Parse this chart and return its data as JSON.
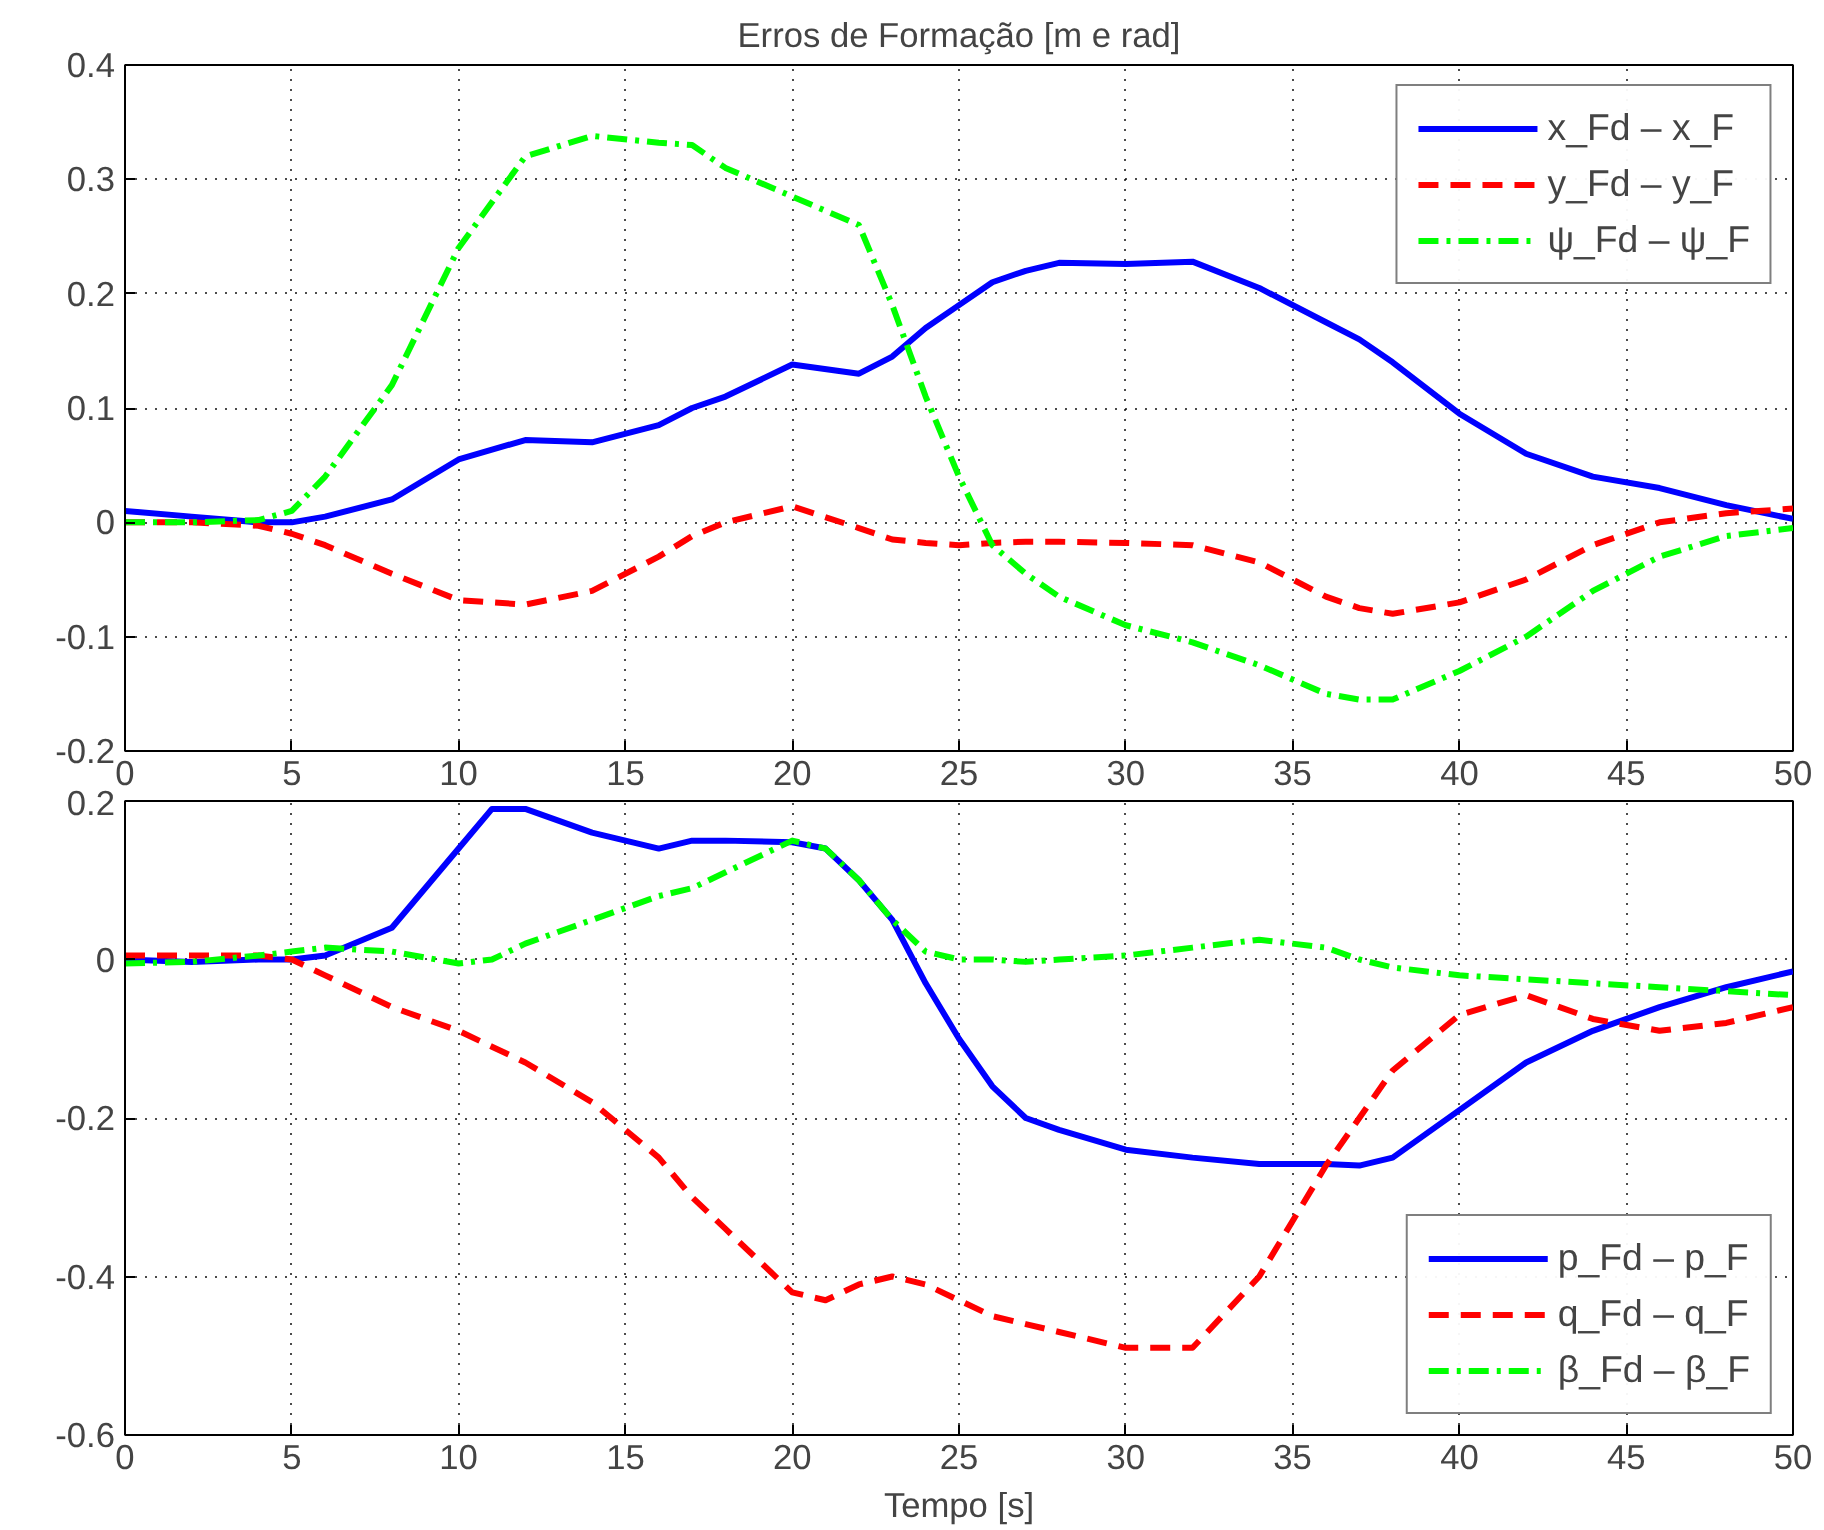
{
  "chart_data": [
    {
      "type": "line",
      "title": "Erros de Formação [m e rad]",
      "xlim": [
        0,
        50
      ],
      "ylim": [
        -0.2,
        0.4
      ],
      "xticks": [
        0,
        5,
        10,
        15,
        20,
        25,
        30,
        35,
        40,
        45,
        50
      ],
      "yticks": [
        -0.2,
        -0.1,
        0,
        0.1,
        0.2,
        0.3,
        0.4
      ],
      "grid": true,
      "legend": "top right",
      "x": [
        0,
        2,
        4,
        5,
        6,
        8,
        10,
        12,
        14,
        16,
        17,
        18,
        20,
        22,
        23,
        24,
        25,
        26,
        27,
        28,
        30,
        32,
        34,
        36,
        37,
        38,
        40,
        42,
        44,
        46,
        48,
        50
      ],
      "series": [
        {
          "name": "x_Fd – x_F",
          "color": "#0000ff",
          "line_style": "solid",
          "values": [
            0.01,
            0.005,
            0.0,
            0.0,
            0.005,
            0.02,
            0.055,
            0.072,
            0.07,
            0.085,
            0.1,
            0.11,
            0.138,
            0.13,
            0.145,
            0.17,
            0.19,
            0.21,
            0.22,
            0.227,
            0.226,
            0.228,
            0.205,
            0.175,
            0.16,
            0.14,
            0.095,
            0.06,
            0.04,
            0.03,
            0.015,
            0.003
          ]
        },
        {
          "name": "y_Fd – y_F",
          "color": "#ff0000",
          "line_style": "dashed",
          "values": [
            0,
            0,
            -0.003,
            -0.01,
            -0.02,
            -0.045,
            -0.068,
            -0.072,
            -0.06,
            -0.03,
            -0.012,
            0.0,
            0.014,
            -0.005,
            -0.015,
            -0.018,
            -0.02,
            -0.018,
            -0.017,
            -0.017,
            -0.018,
            -0.02,
            -0.035,
            -0.065,
            -0.075,
            -0.08,
            -0.07,
            -0.05,
            -0.02,
            0.0,
            0.008,
            0.012
          ]
        },
        {
          "name": "ψ_Fd – ψ_F",
          "color": "#00ff00",
          "line_style": "dashdot",
          "values": [
            0,
            0,
            0.002,
            0.01,
            0.04,
            0.12,
            0.24,
            0.32,
            0.338,
            0.332,
            0.33,
            0.31,
            0.285,
            0.26,
            0.19,
            0.11,
            0.04,
            -0.02,
            -0.045,
            -0.065,
            -0.09,
            -0.105,
            -0.125,
            -0.15,
            -0.155,
            -0.155,
            -0.13,
            -0.1,
            -0.06,
            -0.03,
            -0.012,
            -0.005
          ]
        }
      ]
    },
    {
      "type": "line",
      "xlabel": "Tempo [s]",
      "xlim": [
        0,
        50
      ],
      "ylim": [
        -0.6,
        0.2
      ],
      "xticks": [
        0,
        5,
        10,
        15,
        20,
        25,
        30,
        35,
        40,
        45,
        50
      ],
      "yticks": [
        -0.6,
        -0.4,
        -0.2,
        0,
        0.2
      ],
      "grid": true,
      "legend": "bottom right",
      "x": [
        0,
        2,
        4,
        5,
        6,
        8,
        10,
        11,
        12,
        14,
        16,
        17,
        18,
        20,
        21,
        22,
        23,
        24,
        25,
        26,
        27,
        28,
        30,
        32,
        34,
        36,
        37,
        38,
        40,
        42,
        44,
        46,
        48,
        50
      ],
      "series": [
        {
          "name": "p_Fd – p_F",
          "color": "#0000ff",
          "line_style": "solid",
          "values": [
            0,
            -0.003,
            0,
            0,
            0.005,
            0.04,
            0.14,
            0.19,
            0.19,
            0.16,
            0.14,
            0.15,
            0.15,
            0.148,
            0.14,
            0.1,
            0.05,
            -0.03,
            -0.1,
            -0.16,
            -0.2,
            -0.215,
            -0.24,
            -0.25,
            -0.258,
            -0.258,
            -0.26,
            -0.25,
            -0.19,
            -0.13,
            -0.09,
            -0.06,
            -0.035,
            -0.015
          ]
        },
        {
          "name": "q_Fd – q_F",
          "color": "#ff0000",
          "line_style": "dashed",
          "values": [
            0.005,
            0.005,
            0.005,
            0,
            -0.02,
            -0.06,
            -0.09,
            -0.11,
            -0.13,
            -0.18,
            -0.25,
            -0.3,
            -0.34,
            -0.42,
            -0.43,
            -0.41,
            -0.4,
            -0.41,
            -0.43,
            -0.45,
            -0.46,
            -0.47,
            -0.49,
            -0.49,
            -0.4,
            -0.26,
            -0.2,
            -0.14,
            -0.07,
            -0.045,
            -0.075,
            -0.09,
            -0.08,
            -0.06
          ]
        },
        {
          "name": "β_Fd – β_F",
          "color": "#00ff00",
          "line_style": "dashdot",
          "values": [
            -0.005,
            -0.003,
            0.005,
            0.01,
            0.015,
            0.01,
            -0.005,
            0.0,
            0.02,
            0.05,
            0.08,
            0.09,
            0.11,
            0.15,
            0.14,
            0.1,
            0.05,
            0.01,
            0.0,
            0.0,
            -0.003,
            0.0,
            0.005,
            0.015,
            0.025,
            0.015,
            0.0,
            -0.01,
            -0.02,
            -0.025,
            -0.03,
            -0.035,
            -0.04,
            -0.045
          ]
        }
      ]
    }
  ]
}
